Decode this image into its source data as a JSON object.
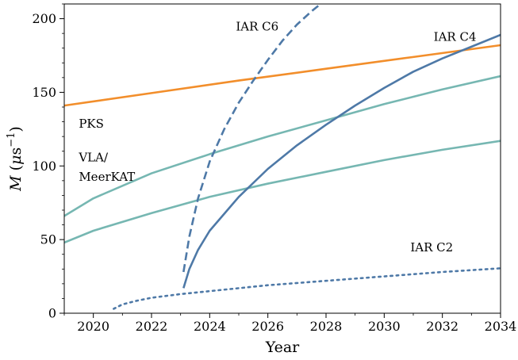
{
  "chart_data": {
    "type": "line",
    "xlabel": "Year",
    "ylabel_var": "M",
    "ylabel_unit_open": "(",
    "ylabel_mu": "μ",
    "ylabel_s": "s",
    "ylabel_exp": "−1",
    "ylabel_unit_close": ")",
    "xlim": [
      2019,
      2034
    ],
    "ylim": [
      0,
      210
    ],
    "xticks": [
      2020,
      2022,
      2024,
      2026,
      2028,
      2030,
      2032,
      2034
    ],
    "yticks": [
      0,
      50,
      100,
      150,
      200
    ],
    "grid": false,
    "legend": "none",
    "series": [
      {
        "name": "PKS",
        "color": "#F28E2B",
        "dash": "solid",
        "x": [
          2019,
          2022,
          2025,
          2028,
          2031,
          2034
        ],
        "y": [
          141,
          149.5,
          158,
          166,
          174,
          182
        ]
      },
      {
        "name": "VLA/ MeerKAT",
        "color": "#76B7B2",
        "dash": "solid",
        "x": [
          2019,
          2020,
          2022,
          2024,
          2026,
          2028,
          2030,
          2032,
          2034
        ],
        "y": [
          66,
          78,
          95,
          108,
          120,
          131,
          142,
          152,
          161
        ]
      },
      {
        "name": "",
        "color": "#76B7B2",
        "dash": "solid",
        "x": [
          2019,
          2020,
          2022,
          2024,
          2026,
          2028,
          2030,
          2032,
          2034
        ],
        "y": [
          48,
          56,
          68,
          79,
          88,
          96,
          104,
          111,
          117
        ]
      },
      {
        "name": "IAR C6",
        "color": "#4E79A7",
        "dash": "dashed",
        "x": [
          2023.1,
          2023.3,
          2023.6,
          2024.0,
          2024.5,
          2025.0,
          2025.5,
          2026.0,
          2026.5,
          2027.0,
          2027.5,
          2028.0
        ],
        "y": [
          28,
          52,
          78,
          103,
          125,
          143,
          158,
          172,
          185,
          196,
          205,
          213
        ]
      },
      {
        "name": "IAR C4",
        "color": "#4E79A7",
        "dash": "solid",
        "x": [
          2023.1,
          2023.3,
          2023.6,
          2024.0,
          2025.0,
          2026.0,
          2027.0,
          2028.0,
          2029.0,
          2030.0,
          2031.0,
          2032.0,
          2033.0,
          2034.0
        ],
        "y": [
          17,
          30,
          43,
          56,
          79,
          98,
          114,
          128,
          141,
          153,
          164,
          173,
          181,
          189
        ]
      },
      {
        "name": "IAR C2",
        "color": "#4E79A7",
        "dash": "dotted",
        "x": [
          2020.7,
          2021.0,
          2021.5,
          2022.0,
          2023.0,
          2024.0,
          2026.0,
          2028.0,
          2030.0,
          2032.0,
          2034.0
        ],
        "y": [
          3,
          6,
          8.5,
          10.5,
          13,
          15,
          19,
          22,
          25,
          28,
          30.5
        ]
      }
    ],
    "annotations": [
      {
        "text": "PKS",
        "x": 2019.5,
        "y": 126
      },
      {
        "text": "VLA/",
        "x": 2019.5,
        "y": 103
      },
      {
        "text": "MeerKAT",
        "x": 2019.5,
        "y": 90
      },
      {
        "text": "IAR C6",
        "x": 2024.9,
        "y": 192
      },
      {
        "text": "IAR C4",
        "x": 2031.7,
        "y": 185
      },
      {
        "text": "IAR C2",
        "x": 2030.9,
        "y": 42
      }
    ]
  }
}
